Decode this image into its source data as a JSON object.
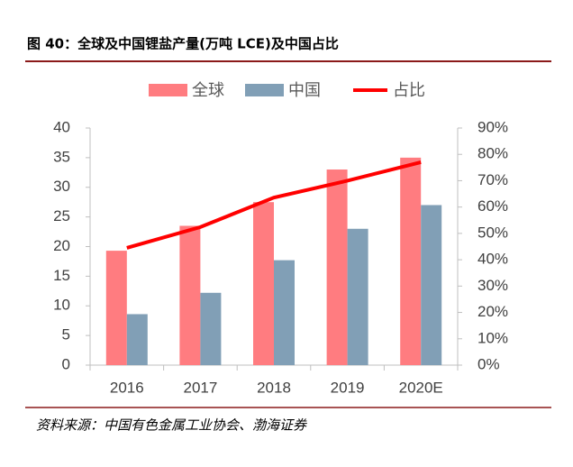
{
  "chart_data": {
    "type": "bar-line",
    "title": "图 40：全球及中国锂盐产量(万吨 LCE)及中国占比",
    "source": "资料来源：中国有色金属工业协会、渤海证券",
    "categories": [
      "2016",
      "2017",
      "2018",
      "2019",
      "2020E"
    ],
    "series": [
      {
        "name": "全球",
        "type": "bar",
        "color": "#ff7c80",
        "values": [
          19.3,
          23.5,
          27.5,
          33,
          35
        ]
      },
      {
        "name": "中国",
        "type": "bar",
        "color": "#819fb6",
        "values": [
          8.6,
          12.2,
          17.7,
          23,
          27
        ]
      },
      {
        "name": "占比",
        "type": "line",
        "axis": "y2",
        "color": "#ff0000",
        "values": [
          44.5,
          52.4,
          63.6,
          70,
          77
        ]
      }
    ],
    "ylim": [
      0,
      40
    ],
    "yticks": [
      0,
      5,
      10,
      15,
      20,
      25,
      30,
      35,
      40
    ],
    "y2lim": [
      0,
      90
    ],
    "y2ticks": [
      {
        "value": 0,
        "label": "0%"
      },
      {
        "value": 10,
        "label": "10%"
      },
      {
        "value": 20,
        "label": "20%"
      },
      {
        "value": 30,
        "label": "30%"
      },
      {
        "value": 40,
        "label": "40%"
      },
      {
        "value": 50,
        "label": "50%"
      },
      {
        "value": 60,
        "label": "60%"
      },
      {
        "value": 70,
        "label": "70%"
      },
      {
        "value": 80,
        "label": "80%"
      },
      {
        "value": 90,
        "label": "90%"
      }
    ],
    "legend": "top"
  }
}
